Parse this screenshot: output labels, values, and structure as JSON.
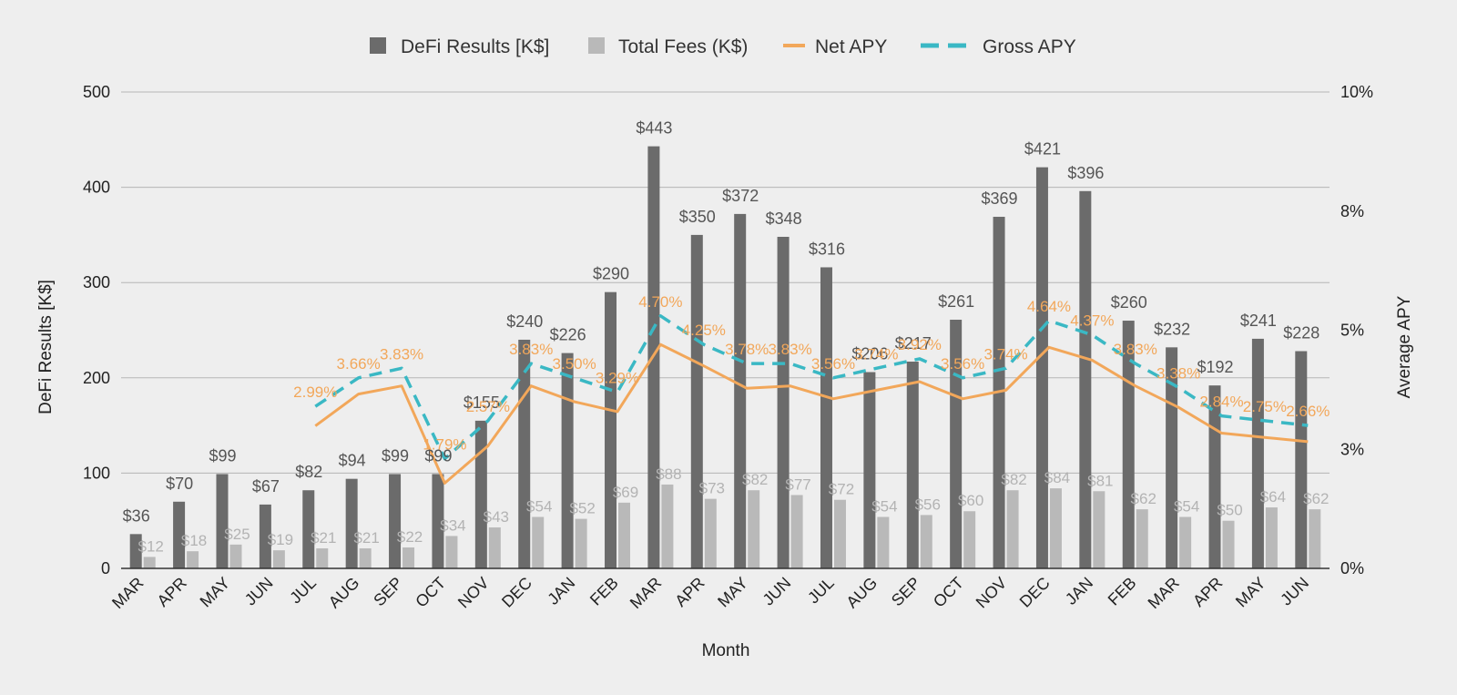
{
  "chart_data": {
    "type": "bar",
    "title": "",
    "xlabel": "Month",
    "ylabel": "DeFi Results [K$]",
    "y2label": "Average APY",
    "ylim": [
      0,
      500
    ],
    "y2lim": [
      0,
      10
    ],
    "y_ticks": [
      "0",
      "100",
      "200",
      "300",
      "400",
      "500"
    ],
    "y2_ticks": [
      "0%",
      "3%",
      "5%",
      "8%",
      "10%"
    ],
    "grid": true,
    "legend_position": "top",
    "categories": [
      "MAR",
      "APR",
      "MAY",
      "JUN",
      "JUL",
      "AUG",
      "SEP",
      "OCT",
      "NOV",
      "DEC",
      "JAN",
      "FEB",
      "MAR",
      "APR",
      "MAY",
      "JUN",
      "JUL",
      "AUG",
      "SEP",
      "OCT",
      "NOV",
      "DEC",
      "JAN",
      "FEB",
      "MAR",
      "APR",
      "MAY",
      "JUN"
    ],
    "series": [
      {
        "name": "DeFi Results [K$]",
        "kind": "bar",
        "axis": "left",
        "color": "#6b6b6b",
        "values": [
          36,
          70,
          99,
          67,
          82,
          94,
          99,
          99,
          155,
          240,
          226,
          290,
          443,
          350,
          372,
          348,
          316,
          206,
          217,
          261,
          369,
          421,
          396,
          260,
          232,
          192,
          241,
          228
        ],
        "labels": [
          "$36",
          "$70",
          "$99",
          "$67",
          "$82",
          "$94",
          "$99",
          "$99",
          "$155",
          "$240",
          "$226",
          "$290",
          "$443",
          "$350",
          "$372",
          "$348",
          "$316",
          "$206",
          "$217",
          "$261",
          "$369",
          "$421",
          "$396",
          "$260",
          "$232",
          "$192",
          "$241",
          "$228"
        ]
      },
      {
        "name": "Total Fees (K$)",
        "kind": "bar",
        "axis": "left",
        "color": "#b9b9b9",
        "values": [
          12,
          18,
          25,
          19,
          21,
          21,
          22,
          34,
          43,
          54,
          52,
          69,
          88,
          73,
          82,
          77,
          72,
          54,
          56,
          60,
          82,
          84,
          81,
          62,
          54,
          50,
          64,
          62
        ],
        "labels": [
          "$12",
          "$18",
          "$25",
          "$19",
          "$21",
          "$21",
          "$22",
          "$34",
          "$43",
          "$54",
          "$52",
          "$69",
          "$88",
          "$73",
          "$82",
          "$77",
          "$72",
          "$54",
          "$56",
          "$60",
          "$82",
          "$84",
          "$81",
          "$62",
          "$54",
          "$50",
          "$64",
          "$62"
        ]
      },
      {
        "name": "Net APY",
        "kind": "line",
        "axis": "right",
        "color": "#f2a75a",
        "values": [
          null,
          null,
          null,
          null,
          2.99,
          3.66,
          3.83,
          1.79,
          2.57,
          3.83,
          3.5,
          3.29,
          4.7,
          4.25,
          3.78,
          3.83,
          3.56,
          3.74,
          3.92,
          3.56,
          3.74,
          4.64,
          4.37,
          3.83,
          3.38,
          2.84,
          2.75,
          2.66
        ],
        "labels": [
          "",
          "",
          "",
          "",
          "2.99%",
          "3.66%",
          "3.83%",
          "1.79%",
          "2.57%",
          "3.83%",
          "3.50%",
          "3.29%",
          "4.70%",
          "4.25%",
          "3.78%",
          "3.83%",
          "3.56%",
          "3.74%",
          "3.92%",
          "3.56%",
          "3.74%",
          "4.64%",
          "4.37%",
          "3.83%",
          "3.38%",
          "2.84%",
          "2.75%",
          "2.66%"
        ]
      },
      {
        "name": "Gross APY",
        "kind": "line",
        "axis": "right",
        "style": "dashed",
        "color": "#3ab8c4",
        "values": [
          null,
          null,
          null,
          null,
          3.4,
          4.0,
          4.2,
          2.3,
          3.1,
          4.3,
          4.0,
          3.7,
          5.3,
          4.7,
          4.3,
          4.3,
          4.0,
          4.2,
          4.4,
          4.0,
          4.2,
          5.2,
          4.9,
          4.3,
          3.8,
          3.2,
          3.1,
          3.0
        ]
      }
    ]
  }
}
